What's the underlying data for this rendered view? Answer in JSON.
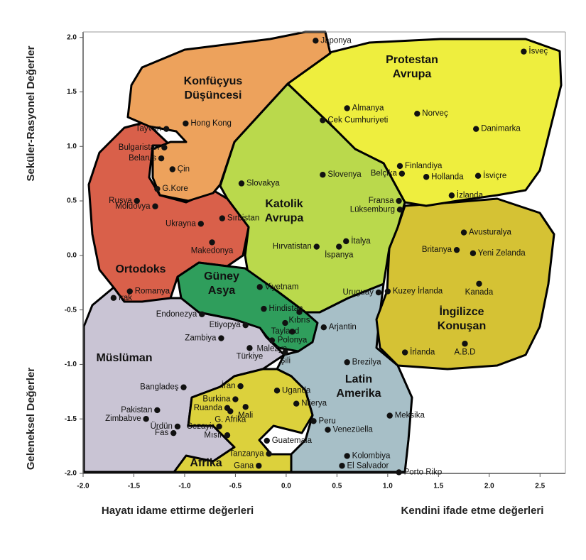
{
  "chart_data": {
    "type": "scatter",
    "y_axis_titles": [
      "Seküler-Rasyonel Değerler",
      "Geleneksel Değerler"
    ],
    "x_axis_titles": [
      "Hayatı idame ettirme değerleri",
      "Kendini ifade etme değerleri"
    ],
    "xlim": [
      -2.0,
      2.75
    ],
    "ylim": [
      -2.0,
      2.05
    ],
    "xticks": [
      {
        "value": -2,
        "label": "-2.0"
      },
      {
        "value": -1.5,
        "label": "-1.5"
      },
      {
        "value": -1,
        "label": "-1.0"
      },
      {
        "value": -0.5,
        "label": "-0.5"
      },
      {
        "value": 0,
        "label": "0.0"
      },
      {
        "value": 0.5,
        "label": "0.5"
      },
      {
        "value": 1,
        "label": "1.0"
      },
      {
        "value": 1.5,
        "label": "1.5"
      },
      {
        "value": 2,
        "label": "2.0"
      },
      {
        "value": 2.5,
        "label": "2.5"
      }
    ],
    "yticks": [
      {
        "value": 2,
        "label": "2.0"
      },
      {
        "value": 1.5,
        "label": "1.5"
      },
      {
        "value": 1,
        "label": "1.0"
      },
      {
        "value": 0.5,
        "label": "0.5"
      },
      {
        "value": 0,
        "label": "0.0"
      },
      {
        "value": -0.5,
        "label": "-0.5"
      },
      {
        "value": -1,
        "label": "-1.0"
      },
      {
        "value": -1.5,
        "label": "-1.5"
      },
      {
        "value": -2,
        "label": "-2.0"
      }
    ],
    "color": "#111111",
    "regions": [
      {
        "label": [
          "Müslüman"
        ],
        "color": "#c9c4d4"
      },
      {
        "label": [
          "Latin",
          "Amerika"
        ],
        "color": "#a7bfc7"
      },
      {
        "label": [
          "Afrika"
        ],
        "color": "#dcd13c"
      },
      {
        "label": [
          "İngilizce",
          "Konuşan"
        ],
        "color": "#d5c234"
      },
      {
        "label": [
          "Protestan",
          "Avrupa"
        ],
        "color": "#eeee3e"
      },
      {
        "label": [
          "Katolik",
          "Avrupa"
        ],
        "color": "#bad94c"
      },
      {
        "label": [
          "Ortodoks"
        ],
        "color": "#d9604a"
      },
      {
        "label": [
          "Konfüçyus",
          "Düşüncesi"
        ],
        "color": "#eda25c"
      },
      {
        "label": [
          "Güney",
          "Asya"
        ],
        "color": "#2f9e5c"
      }
    ],
    "labels": [
      "Japonya",
      "İsveç",
      "Almanya",
      "Norveç",
      "Danimarka",
      "Çek Cumhuriyeti",
      "Tayvan",
      "Hong Kong",
      "Bulgaristan",
      "Belarus",
      "Çin",
      "G.Kore",
      "Finlandiya",
      "Hollanda",
      "İsviçre",
      "Slovakya",
      "Slovenya",
      "Belçika",
      "İzlanda",
      "Fransa",
      "Lüksemburg",
      "Rusya",
      "Moldovya",
      "Ukrayna",
      "Sırbistan",
      "Makedonya",
      "Hırvatistan",
      "İtalya",
      "İspanya",
      "Avusturalya",
      "Britanya",
      "Yeni Zelanda",
      "Kanada",
      "Kuzey İrlanda",
      "Romanya",
      "Irak",
      "Viyetnam",
      "Hindistan",
      "Kıbrıs",
      "Endonezya",
      "Uruguay",
      "Etiyopya",
      "Tayland",
      "Polonya",
      "Arjantin",
      "Zambiya",
      "Malezya",
      "Türkiye",
      "Şili",
      "Brezilya",
      "İrlanda",
      "A.B.D",
      "Bangladeş",
      "İran",
      "Uganda",
      "Pakistan",
      "Burkina",
      "Nijerya",
      "Ruanda",
      "Mali",
      "G. Afrika",
      "Zimbabve",
      "Ürdün",
      "Cezayir",
      "Fas",
      "Mısır",
      "Peru",
      "Meksika",
      "Venezüella",
      "Guatemala",
      "Tanzanya",
      "Gana",
      "Kolombiya",
      "El Salvador",
      "Porto Riko"
    ],
    "x": [
      0.29,
      2.34,
      0.6,
      1.29,
      1.87,
      0.36,
      -1.18,
      -0.99,
      -1.2,
      -1.23,
      -1.12,
      -1.27,
      1.12,
      1.38,
      1.89,
      -0.44,
      0.36,
      1.14,
      1.63,
      1.11,
      1.12,
      -1.47,
      -1.29,
      -0.84,
      -0.63,
      -0.73,
      0.3,
      0.59,
      0.52,
      1.75,
      1.68,
      1.84,
      1.9,
      1.0,
      -1.54,
      -1.7,
      -0.26,
      -0.22,
      0.13,
      -0.83,
      0.91,
      -0.4,
      -0.01,
      0.06,
      0.37,
      -0.64,
      -0.14,
      -0.36,
      -0.01,
      0.6,
      1.17,
      1.76,
      -1.01,
      -0.45,
      -0.09,
      -1.27,
      -0.5,
      0.1,
      -0.58,
      -0.4,
      -0.55,
      -1.38,
      -1.07,
      -0.66,
      -1.11,
      -0.58,
      0.27,
      1.02,
      0.41,
      -0.19,
      -0.17,
      -0.27,
      0.6,
      0.55,
      1.11
    ],
    "values": [
      1.97,
      1.87,
      1.35,
      1.3,
      1.16,
      1.24,
      1.16,
      1.21,
      0.99,
      0.89,
      0.79,
      0.61,
      0.82,
      0.72,
      0.73,
      0.66,
      0.74,
      0.75,
      0.55,
      0.5,
      0.42,
      0.5,
      0.45,
      0.29,
      0.34,
      0.12,
      0.08,
      0.13,
      0.08,
      0.21,
      0.05,
      0.02,
      -0.26,
      -0.33,
      -0.33,
      -0.39,
      -0.29,
      -0.49,
      -0.52,
      -0.54,
      -0.34,
      -0.64,
      -0.62,
      -0.7,
      -0.66,
      -0.76,
      -0.78,
      -0.85,
      -0.89,
      -0.98,
      -0.89,
      -0.81,
      -1.21,
      -1.2,
      -1.24,
      -1.42,
      -1.32,
      -1.36,
      -1.4,
      -1.39,
      -1.43,
      -1.5,
      -1.57,
      -1.57,
      -1.63,
      -1.65,
      -1.52,
      -1.47,
      -1.6,
      -1.7,
      -1.82,
      -1.93,
      -1.84,
      -1.93,
      -1.99
    ]
  }
}
